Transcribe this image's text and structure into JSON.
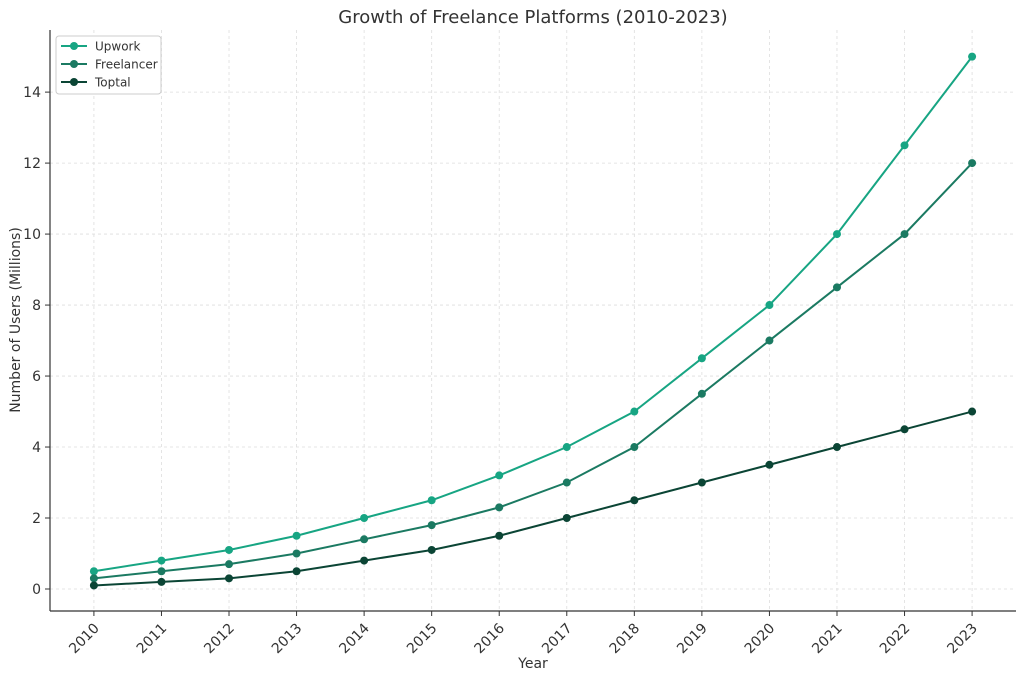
{
  "chart_data": {
    "type": "line",
    "title": "Growth of Freelance Platforms (2010-2023)",
    "xlabel": "Year",
    "ylabel": "Number of Users (Millions)",
    "x": [
      2010,
      2011,
      2012,
      2013,
      2014,
      2015,
      2016,
      2017,
      2018,
      2019,
      2020,
      2021,
      2022,
      2023
    ],
    "xticks": [
      "2010",
      "2011",
      "2012",
      "2013",
      "2014",
      "2015",
      "2016",
      "2017",
      "2018",
      "2019",
      "2020",
      "2021",
      "2022",
      "2023"
    ],
    "yticks": [
      0,
      2,
      4,
      6,
      8,
      10,
      12,
      14
    ],
    "ylim": [
      -0.62,
      15.75
    ],
    "xlim": [
      2009.35,
      2023.65
    ],
    "grid": true,
    "legend_position": "top-left",
    "series": [
      {
        "name": "Upwork",
        "color": "#17a583",
        "values": [
          0.5,
          0.8,
          1.1,
          1.5,
          2.0,
          2.5,
          3.2,
          4.0,
          5.0,
          6.5,
          8.0,
          10,
          12.5,
          15
        ]
      },
      {
        "name": "Freelancer",
        "color": "#1b7a62",
        "values": [
          0.3,
          0.5,
          0.7,
          1.0,
          1.4,
          1.8,
          2.3,
          3.0,
          4.0,
          5.5,
          7.0,
          8.5,
          10,
          12
        ]
      },
      {
        "name": "Toptal",
        "color": "#0b4535",
        "values": [
          0.1,
          0.2,
          0.3,
          0.5,
          0.8,
          1.1,
          1.5,
          2.0,
          2.5,
          3.0,
          3.5,
          4.0,
          4.5,
          5.0
        ]
      }
    ]
  }
}
